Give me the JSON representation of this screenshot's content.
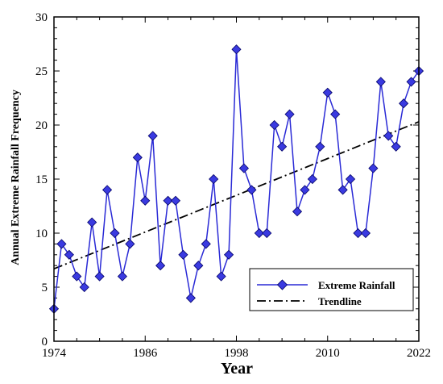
{
  "chart_data": {
    "type": "line",
    "xlabel": "Year",
    "ylabel": "Annual Extreme Rainfall Frequency",
    "xlim": [
      1974,
      2022
    ],
    "ylim": [
      0,
      30
    ],
    "x_ticks": [
      "1974",
      "1986",
      "1998",
      "2010",
      "2022"
    ],
    "y_ticks": [
      "0",
      "5",
      "10",
      "15",
      "20",
      "25",
      "30"
    ],
    "grid": false,
    "legend_position": "bottom-right",
    "series": [
      {
        "name": "Extreme Rainfall",
        "color": "#2a2ad6",
        "marker": "diamond",
        "x": [
          1974,
          1975,
          1976,
          1977,
          1978,
          1979,
          1980,
          1981,
          1982,
          1983,
          1984,
          1985,
          1986,
          1987,
          1988,
          1989,
          1990,
          1991,
          1992,
          1993,
          1994,
          1995,
          1996,
          1997,
          1998,
          1999,
          2000,
          2001,
          2002,
          2003,
          2004,
          2005,
          2006,
          2007,
          2008,
          2009,
          2010,
          2011,
          2012,
          2013,
          2014,
          2015,
          2016,
          2017,
          2018,
          2019,
          2020,
          2021,
          2022
        ],
        "values": [
          3,
          9,
          8,
          6,
          5,
          11,
          6,
          14,
          10,
          6,
          9,
          17,
          13,
          19,
          7,
          13,
          13,
          8,
          4,
          7,
          9,
          15,
          6,
          8,
          27,
          16,
          14,
          10,
          10,
          20,
          18,
          21,
          12,
          14,
          15,
          18,
          23,
          21,
          14,
          15,
          10,
          10,
          16,
          24,
          19,
          18,
          22,
          24,
          25
        ]
      },
      {
        "name": "Trendline",
        "color": "#000000",
        "style": "dash-dot",
        "x": [
          1974,
          2022
        ],
        "values": [
          6.7,
          20.3
        ]
      }
    ]
  }
}
